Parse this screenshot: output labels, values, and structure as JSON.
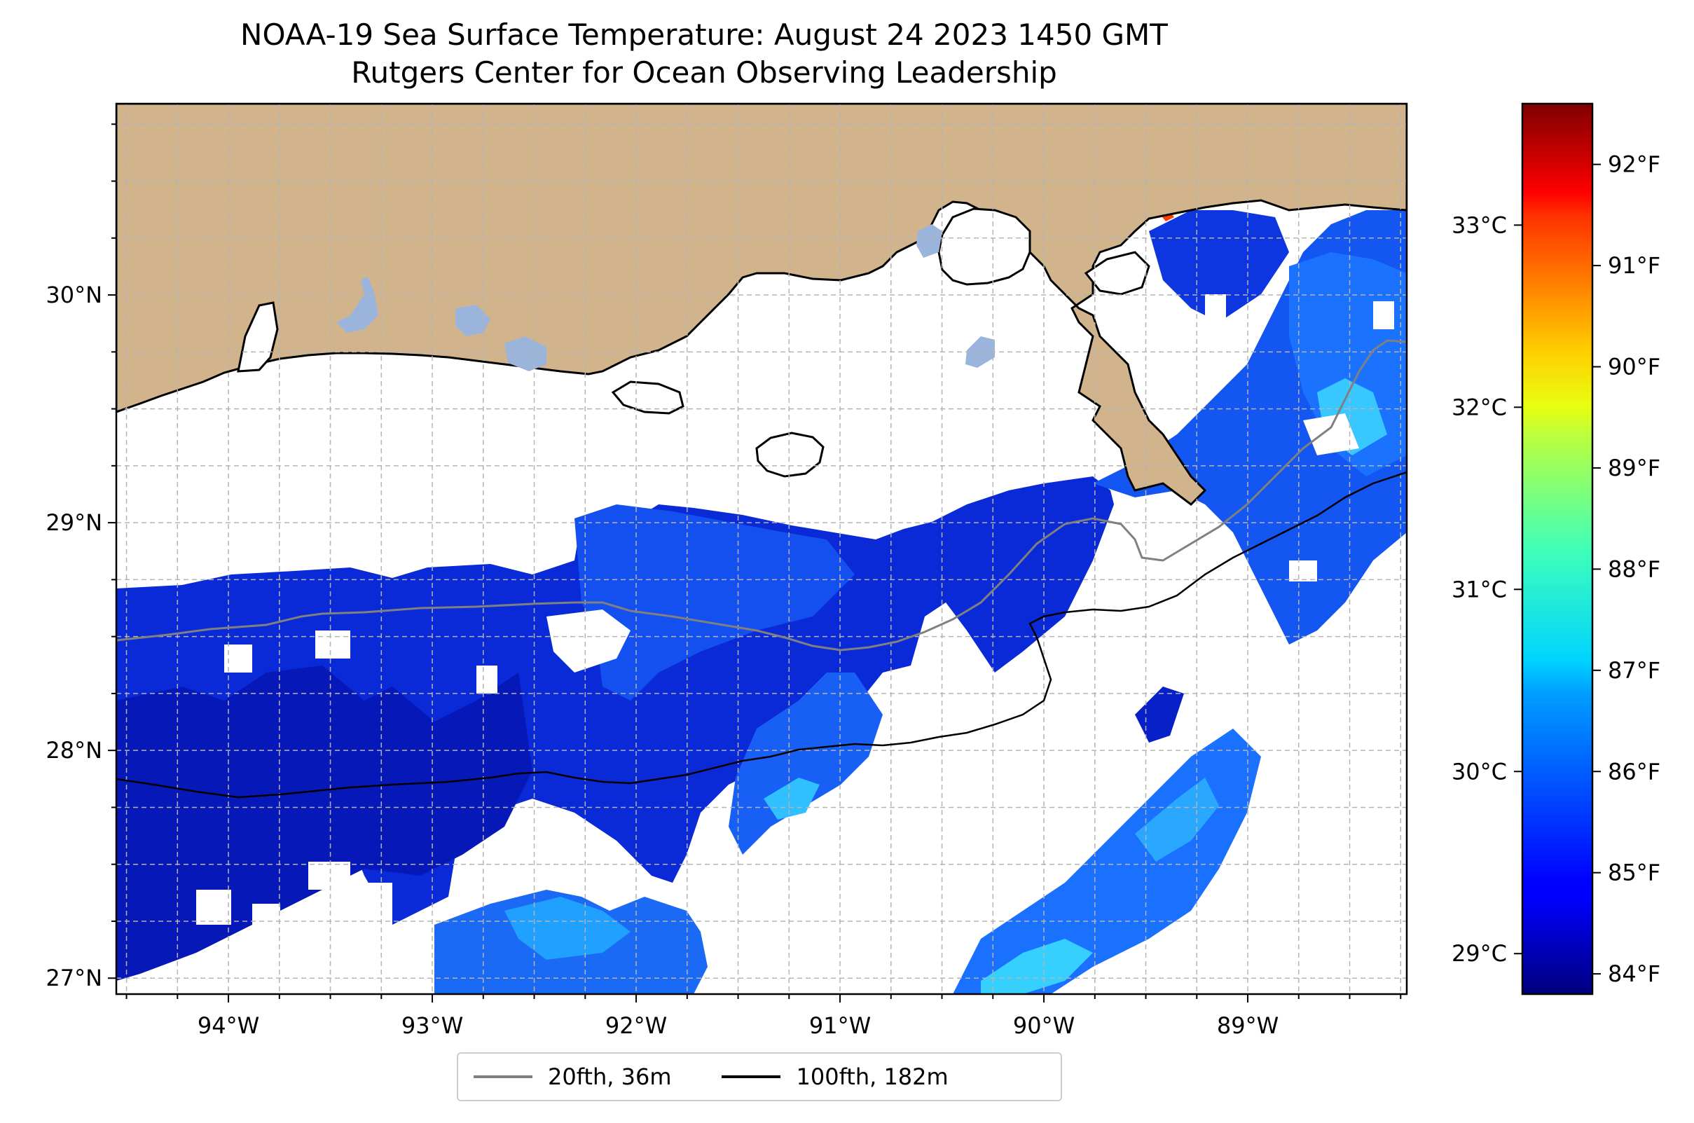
{
  "title": {
    "line1": "NOAA-19 Sea Surface Temperature: August 24 2023 1450 GMT",
    "line2": "Rutgers Center for Ocean Observing Leadership"
  },
  "map": {
    "extent": {
      "lon_min": -94.55,
      "lon_max": -88.22,
      "lat_min": 26.93,
      "lat_max": 30.84
    },
    "lon_ticks": [
      {
        "value": -94,
        "label": "94°W"
      },
      {
        "value": -93,
        "label": "93°W"
      },
      {
        "value": -92,
        "label": "92°W"
      },
      {
        "value": -91,
        "label": "91°W"
      },
      {
        "value": -90,
        "label": "90°W"
      },
      {
        "value": -89,
        "label": "89°W"
      }
    ],
    "lat_ticks": [
      {
        "value": 30,
        "label": "30°N"
      },
      {
        "value": 29,
        "label": "29°N"
      },
      {
        "value": 28,
        "label": "28°N"
      },
      {
        "value": 27,
        "label": "27°N"
      }
    ],
    "colors": {
      "land": "#d2b48c",
      "lakes": "#9bb4dc",
      "cloud": "#ffffff",
      "grid": "#b4b4b4"
    }
  },
  "colorbar": {
    "colormap": "jet",
    "range_f": [
      83.8,
      92.6
    ],
    "fahrenheit_ticks": [
      {
        "value": 84,
        "label": "84°F"
      },
      {
        "value": 85,
        "label": "85°F"
      },
      {
        "value": 86,
        "label": "86°F"
      },
      {
        "value": 87,
        "label": "87°F"
      },
      {
        "value": 88,
        "label": "88°F"
      },
      {
        "value": 89,
        "label": "89°F"
      },
      {
        "value": 90,
        "label": "90°F"
      },
      {
        "value": 91,
        "label": "91°F"
      },
      {
        "value": 92,
        "label": "92°F"
      }
    ],
    "celsius_ticks": [
      {
        "value": 29,
        "label": "29°C"
      },
      {
        "value": 30,
        "label": "30°C"
      },
      {
        "value": 31,
        "label": "31°C"
      },
      {
        "value": 32,
        "label": "32°C"
      },
      {
        "value": 33,
        "label": "33°C"
      }
    ]
  },
  "legend": {
    "items": [
      {
        "label": "20fth, 36m",
        "color": "#808080"
      },
      {
        "label": "100fth, 182m",
        "color": "#000000"
      }
    ]
  }
}
